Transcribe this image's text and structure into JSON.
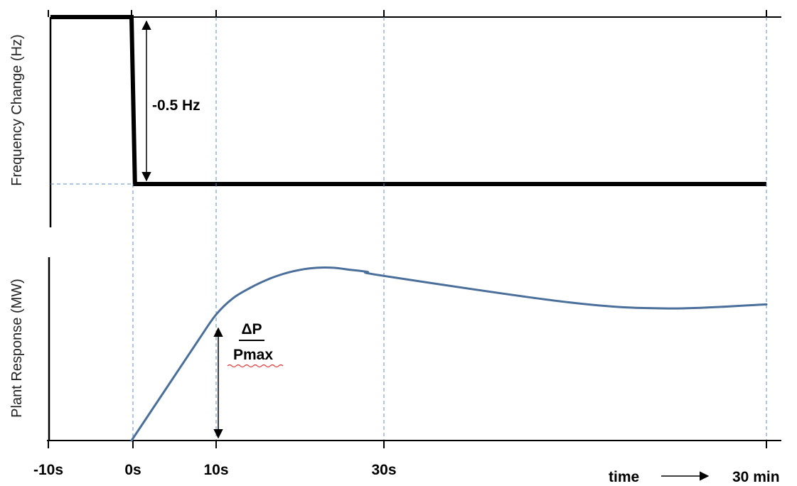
{
  "chart_data": [
    {
      "type": "line",
      "panel": "top",
      "ylabel": "Frequency Change (Hz)",
      "annotation": "-0.5 Hz",
      "series": [
        {
          "color": "#000000",
          "x": [
            -10,
            0,
            0.4,
            30
          ],
          "y": [
            0,
            0,
            -0.5,
            -0.5
          ]
        }
      ]
    },
    {
      "type": "line",
      "panel": "bottom",
      "ylabel": "Plant Response (MW)",
      "annotation_top": "ΔP",
      "annotation_bottom": "Pmax",
      "series": [
        {
          "color": "#4a6f9a",
          "x": [
            0,
            4,
            8,
            10,
            12,
            14,
            16,
            18,
            20,
            22,
            24,
            26,
            28,
            30,
            32
          ],
          "y": [
            0,
            0.25,
            0.5,
            0.62,
            0.7,
            0.75,
            0.79,
            0.82,
            0.84,
            0.85,
            0.85,
            0.84,
            0.83,
            0.81,
            0.79
          ]
        }
      ]
    }
  ],
  "x_axis": {
    "ticks": [
      {
        "value": -10,
        "label": "-10s"
      },
      {
        "value": 0,
        "label": "0s"
      },
      {
        "value": 10,
        "label": "10s"
      },
      {
        "value": 30,
        "label": "30s"
      }
    ],
    "time_label": "time",
    "end_label": "30 min"
  }
}
